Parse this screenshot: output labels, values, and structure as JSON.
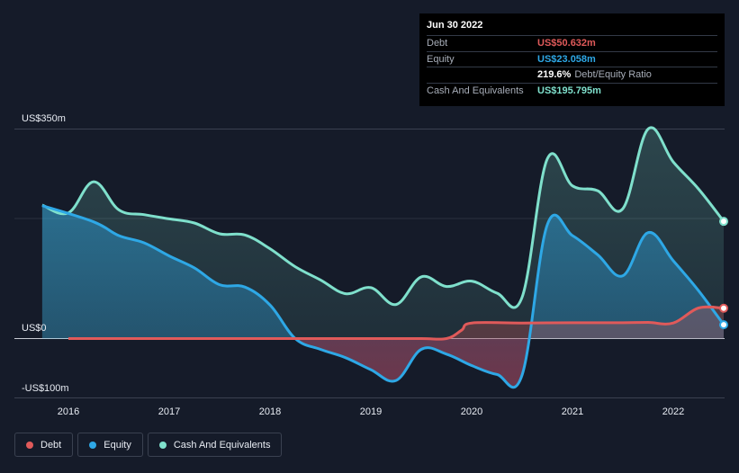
{
  "chart_data": {
    "type": "area",
    "ylim": [
      -100,
      350
    ],
    "y_tick_labels": [
      "US$350m",
      "US$0",
      "-US$100m"
    ],
    "x_tick_labels": [
      "2016",
      "2017",
      "2018",
      "2019",
      "2020",
      "2021",
      "2022"
    ],
    "x_range": [
      2015.74,
      2022.5
    ],
    "series": [
      {
        "name": "Debt",
        "color": "#e05a5a",
        "points": [
          [
            2016.0,
            0
          ],
          [
            2016.5,
            0
          ],
          [
            2017.0,
            0
          ],
          [
            2017.5,
            0
          ],
          [
            2018.0,
            0
          ],
          [
            2018.5,
            0
          ],
          [
            2019.0,
            0
          ],
          [
            2019.5,
            0
          ],
          [
            2019.75,
            0
          ],
          [
            2019.9,
            14
          ],
          [
            2020.0,
            26
          ],
          [
            2020.5,
            26
          ],
          [
            2021.0,
            26.5
          ],
          [
            2021.5,
            26.5
          ],
          [
            2021.75,
            27
          ],
          [
            2022.0,
            26
          ],
          [
            2022.25,
            51
          ],
          [
            2022.5,
            50.632
          ]
        ]
      },
      {
        "name": "Equity",
        "color": "#2ea8e6",
        "points": [
          [
            2015.74,
            222
          ],
          [
            2016.25,
            195
          ],
          [
            2016.5,
            172
          ],
          [
            2016.75,
            160
          ],
          [
            2017.0,
            138
          ],
          [
            2017.25,
            118
          ],
          [
            2017.5,
            90
          ],
          [
            2017.75,
            86
          ],
          [
            2018.0,
            56
          ],
          [
            2018.25,
            0
          ],
          [
            2018.5,
            -18
          ],
          [
            2018.75,
            -32
          ],
          [
            2019.0,
            -52
          ],
          [
            2019.25,
            -70
          ],
          [
            2019.5,
            -18
          ],
          [
            2019.75,
            -26
          ],
          [
            2020.0,
            -45
          ],
          [
            2020.25,
            -60
          ],
          [
            2020.5,
            -61
          ],
          [
            2020.75,
            190
          ],
          [
            2021.0,
            172
          ],
          [
            2021.25,
            140
          ],
          [
            2021.5,
            105
          ],
          [
            2021.75,
            177
          ],
          [
            2022.0,
            130
          ],
          [
            2022.25,
            80
          ],
          [
            2022.5,
            23.058
          ]
        ]
      },
      {
        "name": "Cash And Equivalents",
        "color": "#7fe0cc",
        "points": [
          [
            2015.74,
            223
          ],
          [
            2016.0,
            210
          ],
          [
            2016.25,
            262
          ],
          [
            2016.5,
            215
          ],
          [
            2016.75,
            207
          ],
          [
            2017.0,
            200
          ],
          [
            2017.25,
            193
          ],
          [
            2017.5,
            175
          ],
          [
            2017.75,
            173
          ],
          [
            2018.0,
            150
          ],
          [
            2018.25,
            120
          ],
          [
            2018.5,
            98
          ],
          [
            2018.75,
            75
          ],
          [
            2019.0,
            85
          ],
          [
            2019.25,
            57
          ],
          [
            2019.5,
            103
          ],
          [
            2019.75,
            87
          ],
          [
            2020.0,
            96
          ],
          [
            2020.25,
            76
          ],
          [
            2020.5,
            69
          ],
          [
            2020.75,
            300
          ],
          [
            2021.0,
            255
          ],
          [
            2021.25,
            247
          ],
          [
            2021.5,
            217
          ],
          [
            2021.75,
            350
          ],
          [
            2022.0,
            295
          ],
          [
            2022.25,
            250
          ],
          [
            2022.5,
            195.795
          ]
        ]
      }
    ]
  },
  "tooltip": {
    "date": "Jun 30 2022",
    "rows": [
      {
        "name": "Debt",
        "value": "US$50.632m",
        "color": "#e05a5a"
      },
      {
        "name": "Equity",
        "value": "US$23.058m",
        "color": "#2ea8e6"
      },
      {
        "name": "",
        "value": "219.6%",
        "sub": "Debt/Equity Ratio",
        "color": "#ffffff"
      },
      {
        "name": "Cash And Equivalents",
        "value": "US$195.795m",
        "color": "#7fe0cc"
      }
    ]
  },
  "legend": [
    {
      "label": "Debt",
      "color": "#e05a5a"
    },
    {
      "label": "Equity",
      "color": "#2ea8e6"
    },
    {
      "label": "Cash And Equivalents",
      "color": "#7fe0cc"
    }
  ]
}
